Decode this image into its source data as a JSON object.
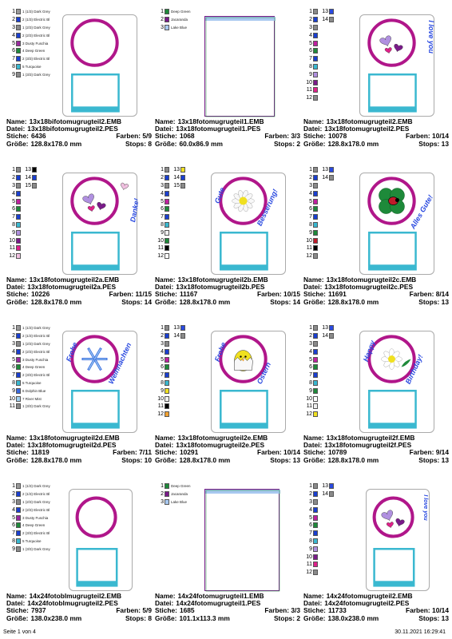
{
  "cells": [
    {
      "name": "13x18bifotomugrugteil2.EMB",
      "file": "13x18bifotomugrugteil2.PES",
      "stitches": "6436",
      "colors_label": "Farben: 5/9",
      "size": "128.8x178.0 mm",
      "stops": "Stops: 8",
      "legend_type": "named",
      "legend": [
        {
          "n": "1",
          "c": "#9a9a9a",
          "t": "1 (1/3) Dark Grey"
        },
        {
          "n": "2",
          "c": "#1a3fd0",
          "t": "2 (1/3) Electric Bl"
        },
        {
          "n": "3",
          "c": "#8a8a8a",
          "t": "1 (2/3) Dark Grey"
        },
        {
          "n": "4",
          "c": "#1a3fd0",
          "t": "2 (2/3) Electric Bl"
        },
        {
          "n": "5",
          "c": "#9a2aa0",
          "t": "3 Dusty Fuschia"
        },
        {
          "n": "6",
          "c": "#1e8a3a",
          "t": "4 Deep Green"
        },
        {
          "n": "7",
          "c": "#1a3fd0",
          "t": "2 (3/3) Electric Bl"
        },
        {
          "n": "8",
          "c": "#3ab8d0",
          "t": "5 Turquoise"
        },
        {
          "n": "9",
          "c": "#8a8a8a",
          "t": "1 (3/3) Dark Grey"
        }
      ],
      "art": "circle-square",
      "text_lines": []
    },
    {
      "name": "13x18fotomugrugteil1.EMB",
      "file": "13x18fotomugrugteil1.PES",
      "stitches": "1068",
      "colors_label": "Farben: 3/3",
      "size": "60.0x86.9 mm",
      "stops": "Stops: 2",
      "legend_type": "plain",
      "legend": [
        {
          "n": "1",
          "c": "#1e8a3a",
          "t": "Deep Green"
        },
        {
          "n": "2",
          "c": "#7a1a8a",
          "t": "Jacaranda"
        },
        {
          "n": "3",
          "c": "#a8c8f0",
          "t": "Lake Blue"
        }
      ],
      "art": "rect-frame",
      "text_lines": []
    },
    {
      "name": "13x18fotomugrugteil2.EMB",
      "file": "13x18fotomugrugteil2.PES",
      "stitches": "10078",
      "colors_label": "Farben: 10/14",
      "size": "128.8x178.0 mm",
      "stops": "Stops: 13",
      "legend_type": "numbered",
      "legend": [
        {
          "n": "1",
          "c": "#8a8a8a",
          "x": "13",
          "xc": "#2a4ae0"
        },
        {
          "n": "2",
          "c": "#1a3fd0",
          "x": "14",
          "xc": "#8a8a8a"
        },
        {
          "n": "3",
          "c": "#8a8a8a"
        },
        {
          "n": "4",
          "c": "#1a3fd0"
        },
        {
          "n": "5",
          "c": "#c020a0"
        },
        {
          "n": "6",
          "c": "#1e8a3a"
        },
        {
          "n": "7",
          "c": "#1a3fd0"
        },
        {
          "n": "8",
          "c": "#3ab8d0"
        },
        {
          "n": "9",
          "c": "#b090e0"
        },
        {
          "n": "10",
          "c": "#7a1a8a"
        },
        {
          "n": "11",
          "c": "#e0208a"
        },
        {
          "n": "12",
          "c": "#8a8a8a"
        }
      ],
      "art": "hearts",
      "text_lines": [
        "I love you"
      ]
    },
    {
      "name": "13x18fotomugrugteil2a.EMB",
      "file": "13x18fotomugrugteil2a.PES",
      "stitches": "10226",
      "colors_label": "Farben: 11/15",
      "size": "128.8x178.0 mm",
      "stops": "Stops: 14",
      "legend_type": "numbered",
      "legend": [
        {
          "n": "1",
          "c": "#8a8a8a",
          "x": "13",
          "xc": "#000000"
        },
        {
          "n": "2",
          "c": "#1a3fd0",
          "x": "14",
          "xc": "#1a3fd0"
        },
        {
          "n": "3",
          "c": "#8a8a8a",
          "x": "15",
          "xc": "#8a8a8a"
        },
        {
          "n": "4",
          "c": "#1a3fd0"
        },
        {
          "n": "5",
          "c": "#c020a0"
        },
        {
          "n": "6",
          "c": "#1e8a3a"
        },
        {
          "n": "7",
          "c": "#1a3fd0"
        },
        {
          "n": "8",
          "c": "#3ab8d0"
        },
        {
          "n": "9",
          "c": "#b090e0"
        },
        {
          "n": "10",
          "c": "#7a1a8a"
        },
        {
          "n": "11",
          "c": "#e0208a"
        },
        {
          "n": "12",
          "c": "#f0c0e0"
        }
      ],
      "art": "hearts-danke",
      "text_lines": [
        "Danke!"
      ]
    },
    {
      "name": "13x18fotomugrugteil2b.EMB",
      "file": "13x18fotomugrugteil2b.PES",
      "stitches": "11167",
      "colors_label": "Farben: 10/15",
      "size": "128.8x178.0 mm",
      "stops": "Stops: 14",
      "legend_type": "numbered",
      "legend": [
        {
          "n": "1",
          "c": "#8a8a8a",
          "x": "13",
          "xc": "#f0e020"
        },
        {
          "n": "2",
          "c": "#1a3fd0",
          "x": "14",
          "xc": "#1a3fd0"
        },
        {
          "n": "3",
          "c": "#8a8a8a",
          "x": "15",
          "xc": "#8a8a8a"
        },
        {
          "n": "4",
          "c": "#1a3fd0"
        },
        {
          "n": "5",
          "c": "#c020a0"
        },
        {
          "n": "6",
          "c": "#1e8a3a"
        },
        {
          "n": "7",
          "c": "#1a3fd0"
        },
        {
          "n": "8",
          "c": "#3ab8d0"
        },
        {
          "n": "9",
          "c": "#f0f0f0"
        },
        {
          "n": "10",
          "c": "#1e8a3a"
        },
        {
          "n": "11",
          "c": "#000000"
        },
        {
          "n": "12",
          "c": "#ffffff"
        }
      ],
      "art": "daisy",
      "text_lines": [
        "Gute",
        "Besserung!"
      ]
    },
    {
      "name": "13x18fotomugrugteil2c.EMB",
      "file": "13x18fotomugrugteil2c.PES",
      "stitches": "11691",
      "colors_label": "Farben: 8/14",
      "size": "128.8x178.0 mm",
      "stops": "Stops: 13",
      "legend_type": "numbered",
      "legend": [
        {
          "n": "1",
          "c": "#8a8a8a",
          "x": "13",
          "xc": "#2a4ae0"
        },
        {
          "n": "2",
          "c": "#1a3fd0",
          "x": "14",
          "xc": "#8a8a8a"
        },
        {
          "n": "3",
          "c": "#8a8a8a"
        },
        {
          "n": "4",
          "c": "#1a3fd0"
        },
        {
          "n": "5",
          "c": "#c020a0"
        },
        {
          "n": "6",
          "c": "#1e8a3a"
        },
        {
          "n": "7",
          "c": "#1a3fd0"
        },
        {
          "n": "8",
          "c": "#3ab8d0"
        },
        {
          "n": "9",
          "c": "#1e8a3a"
        },
        {
          "n": "10",
          "c": "#c01a2a"
        },
        {
          "n": "11",
          "c": "#000000"
        },
        {
          "n": "12",
          "c": "#8a8a8a"
        }
      ],
      "art": "clover",
      "text_lines": [
        "Alles Gute!"
      ]
    },
    {
      "name": "13x18fotomugrugteil2d.EMB",
      "file": "13x18fotomugrugteil2d.PES",
      "stitches": "11819",
      "colors_label": "Farben: 7/11",
      "size": "128.8x178.0 mm",
      "stops": "Stops: 10",
      "legend_type": "named",
      "legend": [
        {
          "n": "1",
          "c": "#9a9a9a",
          "t": "1 (1/3) Dark Grey"
        },
        {
          "n": "2",
          "c": "#1a3fd0",
          "t": "2 (1/3) Electric Bl"
        },
        {
          "n": "3",
          "c": "#8a8a8a",
          "t": "1 (2/3) Dark Grey"
        },
        {
          "n": "4",
          "c": "#1a3fd0",
          "t": "2 (2/3) Electric Bl"
        },
        {
          "n": "5",
          "c": "#9a2aa0",
          "t": "3 Dusty Fuschia"
        },
        {
          "n": "6",
          "c": "#1e8a3a",
          "t": "4 Deep Green"
        },
        {
          "n": "7",
          "c": "#1a3fd0",
          "t": "2 (3/3) Electric Bl"
        },
        {
          "n": "8",
          "c": "#3ab8d0",
          "t": "5 Turquoise"
        },
        {
          "n": "9",
          "c": "#3a6ae0",
          "t": "6 Dolphin Blue"
        },
        {
          "n": "10",
          "c": "#a0d0f0",
          "t": "7 River Mist"
        },
        {
          "n": "11",
          "c": "#8a8a8a",
          "t": "1 (3/3) Dark Grey"
        }
      ],
      "art": "snowflake",
      "text_lines": [
        "Frohe",
        "Weihnachten"
      ]
    },
    {
      "name": "13x18fotomugrugteil2e.EMB",
      "file": "13x18fotomugrugteil2e.PES",
      "stitches": "10291",
      "colors_label": "Farben: 10/14",
      "size": "128.8x178.0 mm",
      "stops": "Stops: 13",
      "legend_type": "numbered",
      "legend": [
        {
          "n": "1",
          "c": "#8a8a8a",
          "x": "13",
          "xc": "#2a4ae0"
        },
        {
          "n": "2",
          "c": "#1a3fd0",
          "x": "14",
          "xc": "#8a8a8a"
        },
        {
          "n": "3",
          "c": "#8a8a8a"
        },
        {
          "n": "4",
          "c": "#1a3fd0"
        },
        {
          "n": "5",
          "c": "#c020a0"
        },
        {
          "n": "6",
          "c": "#1e8a3a"
        },
        {
          "n": "7",
          "c": "#1a3fd0"
        },
        {
          "n": "8",
          "c": "#3ab8d0"
        },
        {
          "n": "9",
          "c": "#f0e020"
        },
        {
          "n": "10",
          "c": "#f0f0f0"
        },
        {
          "n": "11",
          "c": "#000000"
        },
        {
          "n": "12",
          "c": "#f0a030"
        }
      ],
      "art": "chick",
      "text_lines": [
        "Frohe",
        "Ostern"
      ]
    },
    {
      "name": "13x18fotomugrugteil2f.EMB",
      "file": "13x18fotomugrugteil2f.PES",
      "stitches": "10789",
      "colors_label": "Farben: 9/14",
      "size": "128.8x178.0 mm",
      "stops": "Stops: 13",
      "legend_type": "numbered",
      "legend": [
        {
          "n": "1",
          "c": "#8a8a8a",
          "x": "13",
          "xc": "#2a4ae0"
        },
        {
          "n": "2",
          "c": "#1a3fd0",
          "x": "14",
          "xc": "#8a8a8a"
        },
        {
          "n": "3",
          "c": "#8a8a8a"
        },
        {
          "n": "4",
          "c": "#1a3fd0"
        },
        {
          "n": "5",
          "c": "#c020a0"
        },
        {
          "n": "6",
          "c": "#1e8a3a"
        },
        {
          "n": "7",
          "c": "#1a3fd0"
        },
        {
          "n": "8",
          "c": "#3ab8d0"
        },
        {
          "n": "9",
          "c": "#1e8a3a"
        },
        {
          "n": "10",
          "c": "#ffffff"
        },
        {
          "n": "11",
          "c": "#f0f0f0"
        },
        {
          "n": "12",
          "c": "#f0e020"
        }
      ],
      "art": "flower",
      "text_lines": [
        "Happy",
        "Birthday!"
      ]
    },
    {
      "name": "14x24fotoblmugrugteil2.EMB",
      "file": "14x24fotoblmugrugteil2.PES",
      "stitches": "7937",
      "colors_label": "Farben: 5/9",
      "size": "138.0x238.0 mm",
      "stops": "Stops: 8",
      "legend_type": "named",
      "legend": [
        {
          "n": "1",
          "c": "#9a9a9a",
          "t": "1 (1/3) Dark Grey"
        },
        {
          "n": "2",
          "c": "#1a3fd0",
          "t": "2 (1/3) Electric Bl"
        },
        {
          "n": "3",
          "c": "#8a8a8a",
          "t": "1 (2/3) Dark Grey"
        },
        {
          "n": "4",
          "c": "#1a3fd0",
          "t": "2 (2/3) Electric Bl"
        },
        {
          "n": "5",
          "c": "#9a2aa0",
          "t": "3 Dusty Fuschia"
        },
        {
          "n": "6",
          "c": "#1e8a3a",
          "t": "4 Deep Green"
        },
        {
          "n": "7",
          "c": "#1a3fd0",
          "t": "2 (3/3) Electric Bl"
        },
        {
          "n": "8",
          "c": "#3ab8d0",
          "t": "5 Turquoise"
        },
        {
          "n": "9",
          "c": "#8a8a8a",
          "t": "1 (3/3) Dark Grey"
        }
      ],
      "art": "circle-square-tall",
      "text_lines": []
    },
    {
      "name": "14x24fotomugrugteil1.EMB",
      "file": "14x24fotomugrugteil1.PES",
      "stitches": "1685",
      "colors_label": "Farben: 3/3",
      "size": "101.1x113.3 mm",
      "stops": "Stops: 2",
      "legend_type": "plain",
      "legend": [
        {
          "n": "1",
          "c": "#1e8a3a",
          "t": "Deep Green"
        },
        {
          "n": "2",
          "c": "#7a1a8a",
          "t": "Jacaranda"
        },
        {
          "n": "3",
          "c": "#a8c8f0",
          "t": "Lake Blue"
        }
      ],
      "art": "rect-frame-wide",
      "text_lines": []
    },
    {
      "name": "14x24fotomugrugteil2.EMB",
      "file": "14x24fotomugrugteil2.PES",
      "stitches": "11733",
      "colors_label": "Farben: 10/14",
      "size": "138.0x238.0 mm",
      "stops": "Stops: 13",
      "legend_type": "numbered",
      "legend": [
        {
          "n": "1",
          "c": "#8a8a8a",
          "x": "13",
          "xc": "#2a4ae0"
        },
        {
          "n": "2",
          "c": "#1a3fd0",
          "x": "14",
          "xc": "#8a8a8a"
        },
        {
          "n": "3",
          "c": "#8a8a8a"
        },
        {
          "n": "4",
          "c": "#1a3fd0"
        },
        {
          "n": "5",
          "c": "#c020a0"
        },
        {
          "n": "6",
          "c": "#1e8a3a"
        },
        {
          "n": "7",
          "c": "#1a3fd0"
        },
        {
          "n": "8",
          "c": "#3ab8d0"
        },
        {
          "n": "9",
          "c": "#b090e0"
        },
        {
          "n": "10",
          "c": "#7a1a8a"
        },
        {
          "n": "11",
          "c": "#e0208a"
        },
        {
          "n": "12",
          "c": "#8a8a8a"
        }
      ],
      "art": "hearts-tall",
      "text_lines": [
        "I love you"
      ]
    }
  ],
  "labels": {
    "name": "Name:",
    "file": "Datei:",
    "stitches": "Stiche:",
    "size": "Größe:"
  },
  "footer": {
    "page": "Seite 1 von 4",
    "timestamp": "30.11.2021 16:29:41"
  },
  "colors": {
    "ring": "#b0168a",
    "frame": "#3ab8d0",
    "ring_fill": "#ffffff"
  }
}
